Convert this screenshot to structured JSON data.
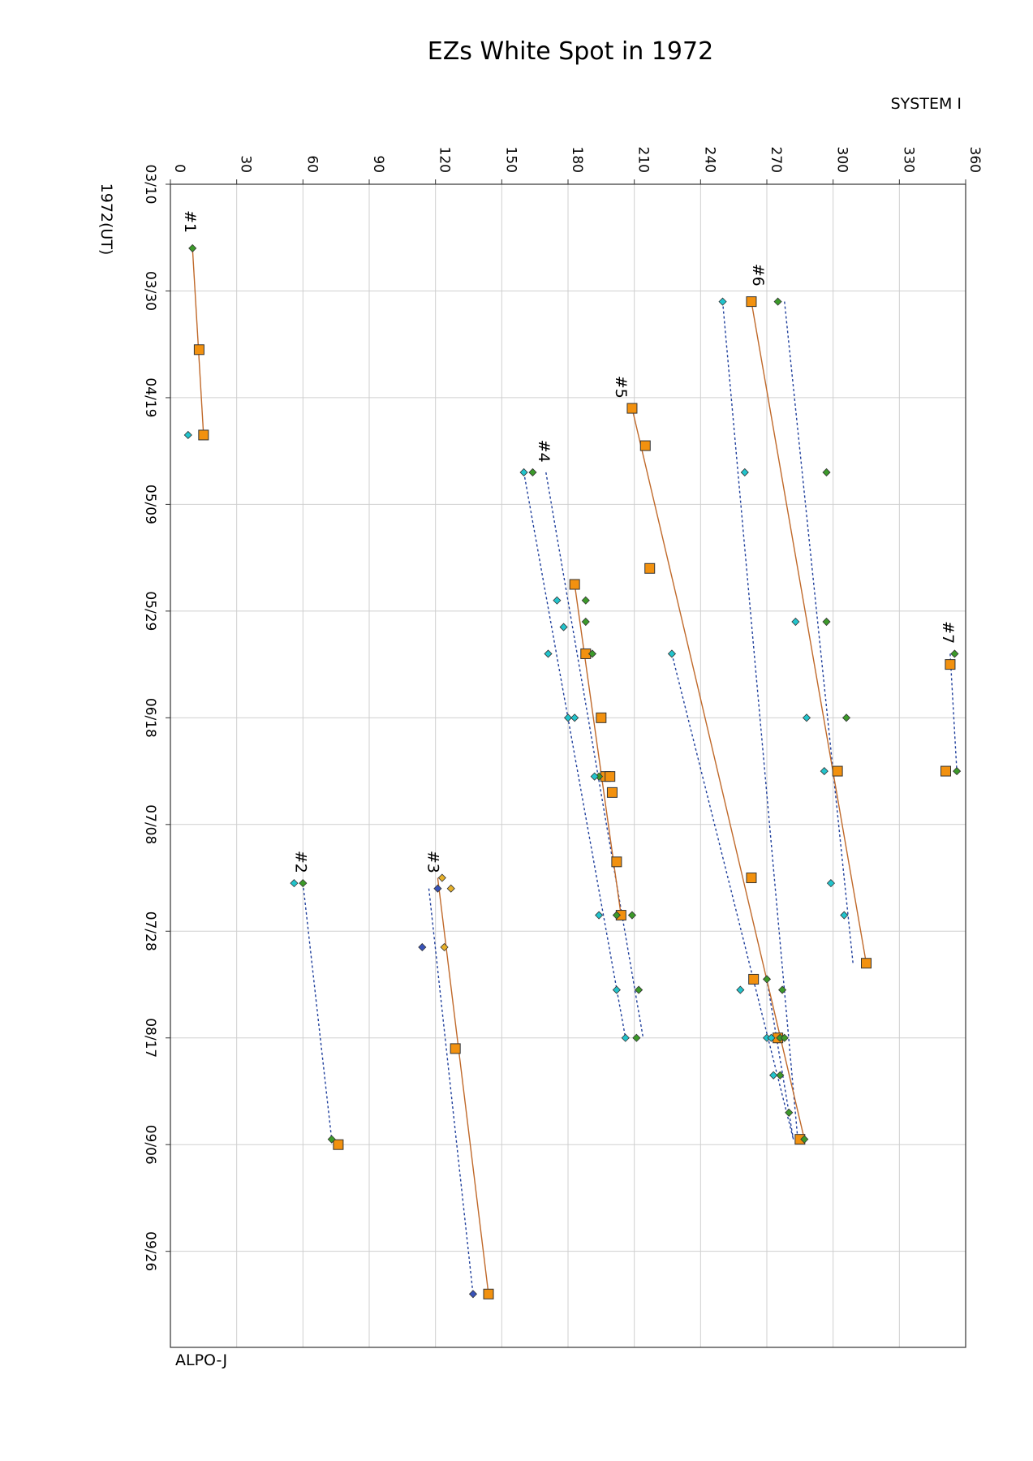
{
  "chart_data": {
    "type": "scatter",
    "title": "EZs White Spot in 1972",
    "x_axis_label": "SYSTEM I",
    "y_axis_label": "1972(UT)",
    "credit": "ALPO-J",
    "xlim": [
      0,
      360
    ],
    "x_ticks": [
      0,
      30,
      60,
      90,
      120,
      150,
      180,
      210,
      240,
      270,
      300,
      330,
      360
    ],
    "ylim": [
      "1972-03-10",
      "1972-10-14"
    ],
    "y_ticks": [
      "03/10",
      "03/30",
      "04/19",
      "05/09",
      "05/29",
      "06/18",
      "07/08",
      "07/28",
      "08/17",
      "09/06",
      "09/26"
    ],
    "y_tick_dates": [
      "1972-03-10",
      "1972-03-30",
      "1972-04-19",
      "1972-05-09",
      "1972-05-29",
      "1972-06-18",
      "1972-07-08",
      "1972-07-28",
      "1972-08-17",
      "1972-09-06",
      "1972-09-26"
    ],
    "grid": true,
    "colors": {
      "orange_square": "#f2910f",
      "green_diamond": "#3c9a2a",
      "cyan_diamond": "#22c4cc",
      "yellow_diamond": "#e7b12a",
      "blue_diamond": "#3852b8",
      "trend_line": "#c0692a",
      "boundary_line": "#1f3f9c"
    },
    "spot_labels": [
      {
        "text": "#1",
        "date": "1972-03-17",
        "lon": 10
      },
      {
        "text": "#6",
        "date": "1972-03-27",
        "lon": 267
      },
      {
        "text": "#5",
        "date": "1972-04-17",
        "lon": 205
      },
      {
        "text": "#4",
        "date": "1972-04-29",
        "lon": 170
      },
      {
        "text": "#7",
        "date": "1972-06-02",
        "lon": 353
      },
      {
        "text": "#2",
        "date": "1972-07-15",
        "lon": 60
      },
      {
        "text": "#3",
        "date": "1972-07-15",
        "lon": 120
      }
    ],
    "series": [
      {
        "marker": "square",
        "color": "#f2910f",
        "points": [
          {
            "lon": 13,
            "date": "1972-04-10"
          },
          {
            "lon": 15,
            "date": "1972-04-26"
          },
          {
            "lon": 263,
            "date": "1972-04-01"
          },
          {
            "lon": 302,
            "date": "1972-06-28"
          },
          {
            "lon": 315,
            "date": "1972-08-03"
          },
          {
            "lon": 209,
            "date": "1972-04-21"
          },
          {
            "lon": 215,
            "date": "1972-04-28"
          },
          {
            "lon": 217,
            "date": "1972-05-21"
          },
          {
            "lon": 183,
            "date": "1972-05-24"
          },
          {
            "lon": 188,
            "date": "1972-06-06"
          },
          {
            "lon": 195,
            "date": "1972-06-18"
          },
          {
            "lon": 197,
            "date": "1972-06-29"
          },
          {
            "lon": 199,
            "date": "1972-06-29"
          },
          {
            "lon": 200,
            "date": "1972-07-02"
          },
          {
            "lon": 202,
            "date": "1972-07-15"
          },
          {
            "lon": 204,
            "date": "1972-07-25"
          },
          {
            "lon": 263,
            "date": "1972-07-18"
          },
          {
            "lon": 264,
            "date": "1972-08-06"
          },
          {
            "lon": 275,
            "date": "1972-08-17"
          },
          {
            "lon": 285,
            "date": "1972-09-05"
          },
          {
            "lon": 353,
            "date": "1972-06-08"
          },
          {
            "lon": 351,
            "date": "1972-06-28"
          },
          {
            "lon": 76,
            "date": "1972-09-06"
          },
          {
            "lon": 129,
            "date": "1972-08-19"
          },
          {
            "lon": 144,
            "date": "1972-10-04"
          }
        ]
      },
      {
        "marker": "diamond",
        "color": "#3c9a2a",
        "points": [
          {
            "lon": 10,
            "date": "1972-03-22"
          },
          {
            "lon": 275,
            "date": "1972-04-01"
          },
          {
            "lon": 297,
            "date": "1972-05-03"
          },
          {
            "lon": 297,
            "date": "1972-05-31"
          },
          {
            "lon": 306,
            "date": "1972-06-18"
          },
          {
            "lon": 164,
            "date": "1972-05-03"
          },
          {
            "lon": 188,
            "date": "1972-05-27"
          },
          {
            "lon": 188,
            "date": "1972-05-31"
          },
          {
            "lon": 191,
            "date": "1972-06-06"
          },
          {
            "lon": 194,
            "date": "1972-06-29"
          },
          {
            "lon": 202,
            "date": "1972-07-25"
          },
          {
            "lon": 209,
            "date": "1972-07-25"
          },
          {
            "lon": 212,
            "date": "1972-08-08"
          },
          {
            "lon": 211,
            "date": "1972-08-17"
          },
          {
            "lon": 270,
            "date": "1972-08-06"
          },
          {
            "lon": 277,
            "date": "1972-08-08"
          },
          {
            "lon": 276,
            "date": "1972-08-17"
          },
          {
            "lon": 278,
            "date": "1972-08-17"
          },
          {
            "lon": 276,
            "date": "1972-08-24"
          },
          {
            "lon": 280,
            "date": "1972-08-31"
          },
          {
            "lon": 287,
            "date": "1972-09-05"
          },
          {
            "lon": 355,
            "date": "1972-06-06"
          },
          {
            "lon": 356,
            "date": "1972-06-28"
          },
          {
            "lon": 60,
            "date": "1972-07-19"
          },
          {
            "lon": 73,
            "date": "1972-09-05"
          }
        ]
      },
      {
        "marker": "diamond",
        "color": "#22c4cc",
        "points": [
          {
            "lon": 8,
            "date": "1972-04-26"
          },
          {
            "lon": 250,
            "date": "1972-04-01"
          },
          {
            "lon": 260,
            "date": "1972-05-03"
          },
          {
            "lon": 283,
            "date": "1972-05-31"
          },
          {
            "lon": 288,
            "date": "1972-06-18"
          },
          {
            "lon": 296,
            "date": "1972-06-28"
          },
          {
            "lon": 299,
            "date": "1972-07-19"
          },
          {
            "lon": 305,
            "date": "1972-07-25"
          },
          {
            "lon": 160,
            "date": "1972-05-03"
          },
          {
            "lon": 175,
            "date": "1972-05-27"
          },
          {
            "lon": 178,
            "date": "1972-06-01"
          },
          {
            "lon": 171,
            "date": "1972-06-06"
          },
          {
            "lon": 180,
            "date": "1972-06-18"
          },
          {
            "lon": 183,
            "date": "1972-06-18"
          },
          {
            "lon": 192,
            "date": "1972-06-29"
          },
          {
            "lon": 194,
            "date": "1972-07-25"
          },
          {
            "lon": 202,
            "date": "1972-08-08"
          },
          {
            "lon": 206,
            "date": "1972-08-17"
          },
          {
            "lon": 227,
            "date": "1972-06-06"
          },
          {
            "lon": 258,
            "date": "1972-08-08"
          },
          {
            "lon": 270,
            "date": "1972-08-17"
          },
          {
            "lon": 272,
            "date": "1972-08-17"
          },
          {
            "lon": 273,
            "date": "1972-08-24"
          },
          {
            "lon": 56,
            "date": "1972-07-19"
          }
        ]
      },
      {
        "marker": "diamond",
        "color": "#e7b12a",
        "points": [
          {
            "lon": 123,
            "date": "1972-07-18"
          },
          {
            "lon": 127,
            "date": "1972-07-20"
          },
          {
            "lon": 124,
            "date": "1972-07-31"
          }
        ]
      },
      {
        "marker": "diamond",
        "color": "#3852b8",
        "points": [
          {
            "lon": 121,
            "date": "1972-07-20"
          },
          {
            "lon": 114,
            "date": "1972-07-31"
          },
          {
            "lon": 137,
            "date": "1972-10-04"
          }
        ]
      }
    ],
    "trend_lines": [
      {
        "from": {
          "lon": 10,
          "date": "1972-03-22"
        },
        "to": {
          "lon": 15,
          "date": "1972-04-26"
        }
      },
      {
        "from": {
          "lon": 263,
          "date": "1972-04-01"
        },
        "to": {
          "lon": 315,
          "date": "1972-08-03"
        }
      },
      {
        "from": {
          "lon": 209,
          "date": "1972-04-21"
        },
        "to": {
          "lon": 287,
          "date": "1972-09-05"
        }
      },
      {
        "from": {
          "lon": 183,
          "date": "1972-05-24"
        },
        "to": {
          "lon": 204,
          "date": "1972-07-25"
        }
      },
      {
        "from": {
          "lon": 121,
          "date": "1972-07-18"
        },
        "to": {
          "lon": 144,
          "date": "1972-10-04"
        }
      }
    ],
    "boundary_lines": [
      {
        "from": {
          "lon": 250,
          "date": "1972-04-01"
        },
        "to": {
          "lon": 284,
          "date": "1972-09-05"
        }
      },
      {
        "from": {
          "lon": 278,
          "date": "1972-04-01"
        },
        "to": {
          "lon": 309,
          "date": "1972-08-03"
        }
      },
      {
        "from": {
          "lon": 160,
          "date": "1972-05-03"
        },
        "to": {
          "lon": 206,
          "date": "1972-08-17"
        }
      },
      {
        "from": {
          "lon": 170,
          "date": "1972-05-03"
        },
        "to": {
          "lon": 214,
          "date": "1972-08-17"
        }
      },
      {
        "from": {
          "lon": 227,
          "date": "1972-06-06"
        },
        "to": {
          "lon": 282,
          "date": "1972-09-05"
        }
      },
      {
        "from": {
          "lon": 270,
          "date": "1972-08-06"
        },
        "to": {
          "lon": 282,
          "date": "1972-09-05"
        }
      },
      {
        "from": {
          "lon": 353,
          "date": "1972-06-06"
        },
        "to": {
          "lon": 356,
          "date": "1972-06-28"
        }
      },
      {
        "from": {
          "lon": 60,
          "date": "1972-07-19"
        },
        "to": {
          "lon": 73,
          "date": "1972-09-05"
        }
      },
      {
        "from": {
          "lon": 117,
          "date": "1972-07-20"
        },
        "to": {
          "lon": 137,
          "date": "1972-10-04"
        }
      }
    ]
  }
}
